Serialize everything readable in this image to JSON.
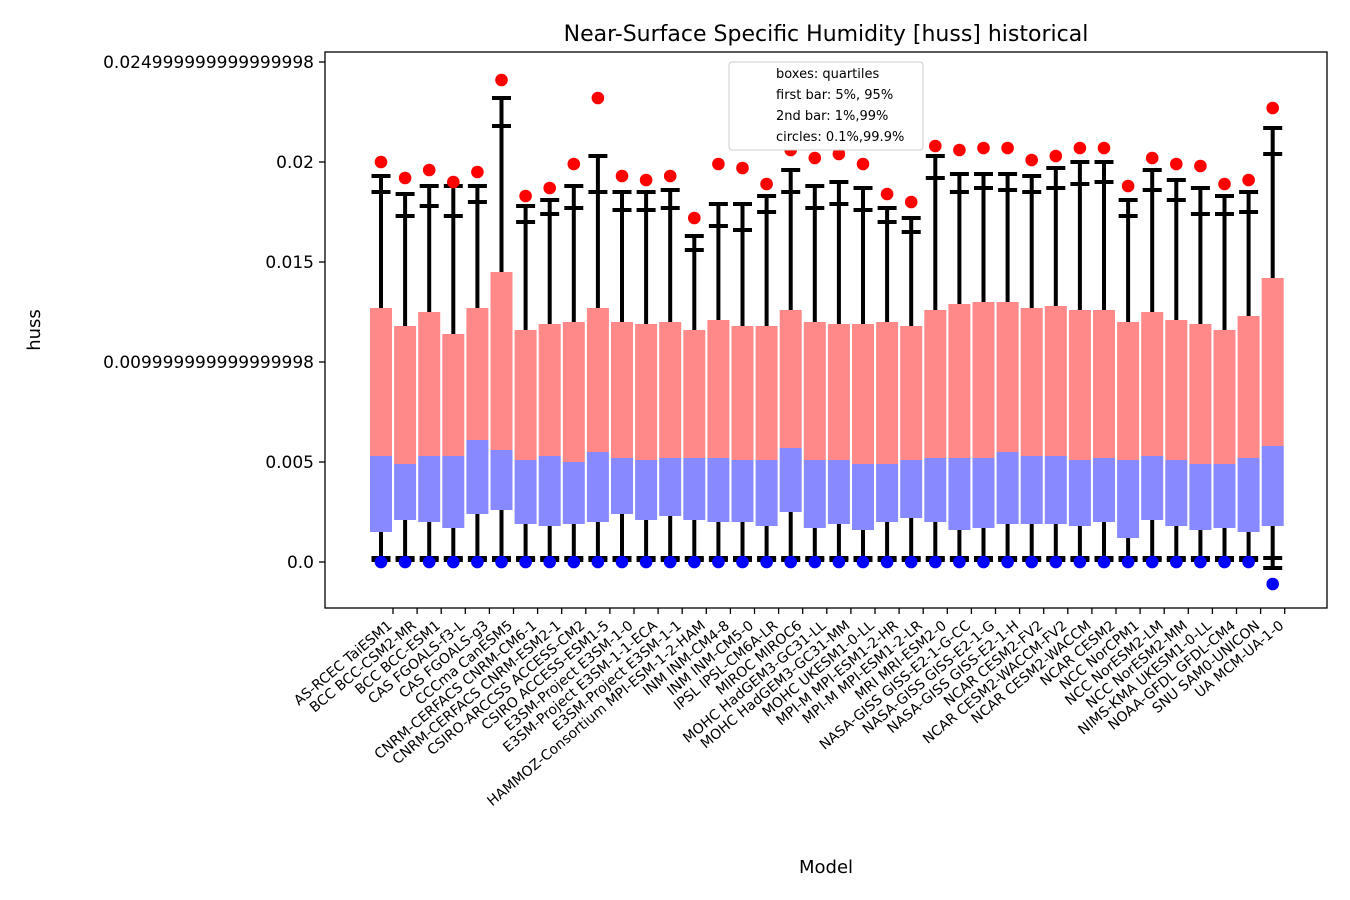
{
  "chart_data": {
    "type": "bar",
    "title": "Near-Surface Specific Humidity [huss] historical",
    "xlabel": "Model",
    "ylabel": "huss",
    "ylim": [
      -0.0023,
      0.0255
    ],
    "yticks": [
      {
        "value": 0.0,
        "label": "0.0"
      },
      {
        "value": 0.005,
        "label": "0.005"
      },
      {
        "value": 0.01,
        "label": "0.009999999999999998"
      },
      {
        "value": 0.015,
        "label": "0.015"
      },
      {
        "value": 0.02,
        "label": "0.02"
      },
      {
        "value": 0.025,
        "label": "0.024999999999999998"
      }
    ],
    "legend": {
      "placement": "top-center",
      "lines": [
        "boxes: quartiles",
        "first bar: 5%, 95%",
        "2nd bar: 1%,99%",
        "circles: 0.1%,99.9%"
      ]
    },
    "colors": {
      "upper_box": "#ff8888",
      "lower_box": "#8888ff",
      "whisker": "#000000",
      "high_circle": "#ff0000",
      "low_circle": "#0000ff"
    },
    "series_fields": [
      "q25",
      "q50",
      "q75",
      "p5",
      "p95",
      "p1",
      "p99",
      "p001",
      "p999"
    ],
    "categories": [
      "AS-RCEC TaiESM1",
      "BCC BCC-CSM2-MR",
      "BCC BCC-ESM1",
      "CAS FGOALS-f3-L",
      "CAS FGOALS-g3",
      "CCCma CanESM5",
      "CNRM-CERFACS CNRM-CM6-1",
      "CNRM-CERFACS CNRM-ESM2-1",
      "CSIRO-ARCCSS ACCESS-CM2",
      "CSIRO ACCESS-ESM1-5",
      "E3SM-Project E3SM-1-0",
      "E3SM-Project E3SM-1-1-ECA",
      "E3SM-Project E3SM-1-1",
      "HAMMOZ-Consortium MPI-ESM-1-2-HAM",
      "INM INM-CM4-8",
      "INM INM-CM5-0",
      "IPSL IPSL-CM6A-LR",
      "MIROC MIROC6",
      "MOHC HadGEM3-GC31-LL",
      "MOHC HadGEM3-GC31-MM",
      "MOHC UKESM1-0-LL",
      "MPI-M MPI-ESM1-2-HR",
      "MPI-M MPI-ESM1-2-LR",
      "MRI MRI-ESM2-0",
      "NASA-GISS GISS-E2-1-G-CC",
      "NASA-GISS GISS-E2-1-G",
      "NASA-GISS GISS-E2-1-H",
      "NCAR CESM2-FV2",
      "NCAR CESM2-WACCM-FV2",
      "NCAR CESM2-WACCM",
      "NCAR CESM2",
      "NCC NorCPM1",
      "NCC NorESM2-LM",
      "NCC NorESM2-MM",
      "NIMS-KMA UKESM1-0-LL",
      "NOAA-GFDL GFDL-CM4",
      "SNU SAM0-UNICON",
      "UA MCM-UA-1-0"
    ],
    "series": [
      [
        0.0015,
        0.0053,
        0.0127,
        0.0002,
        0.0185,
        0.0001,
        0.0193,
        0.0,
        0.02
      ],
      [
        0.0021,
        0.0049,
        0.0118,
        0.0002,
        0.0173,
        0.0001,
        0.0184,
        0.0,
        0.0192
      ],
      [
        0.002,
        0.0053,
        0.0125,
        0.0002,
        0.0178,
        0.0001,
        0.0188,
        0.0,
        0.0196
      ],
      [
        0.0017,
        0.0053,
        0.0114,
        0.0002,
        0.0173,
        0.0001,
        0.0188,
        0.0,
        0.019
      ],
      [
        0.0024,
        0.0061,
        0.0127,
        0.0002,
        0.018,
        0.0001,
        0.0188,
        0.0,
        0.0195
      ],
      [
        0.0026,
        0.0056,
        0.0145,
        0.0002,
        0.0218,
        0.0001,
        0.0232,
        0.0,
        0.0241
      ],
      [
        0.0019,
        0.0051,
        0.0116,
        0.0002,
        0.017,
        0.0001,
        0.0178,
        0.0,
        0.0183
      ],
      [
        0.0018,
        0.0053,
        0.0119,
        0.0002,
        0.0174,
        0.0001,
        0.0181,
        0.0,
        0.0187
      ],
      [
        0.0019,
        0.005,
        0.012,
        0.0002,
        0.0177,
        0.0001,
        0.0188,
        0.0,
        0.0199
      ],
      [
        0.002,
        0.0055,
        0.0127,
        0.0002,
        0.0185,
        0.0001,
        0.0203,
        0.0,
        0.0232
      ],
      [
        0.0024,
        0.0052,
        0.012,
        0.0002,
        0.0176,
        0.0001,
        0.0185,
        0.0,
        0.0193
      ],
      [
        0.0021,
        0.0051,
        0.0119,
        0.0002,
        0.0176,
        0.0001,
        0.0185,
        0.0,
        0.0191
      ],
      [
        0.0023,
        0.0052,
        0.012,
        0.0002,
        0.0177,
        0.0001,
        0.0186,
        0.0,
        0.0193
      ],
      [
        0.0021,
        0.0052,
        0.0116,
        0.0002,
        0.0156,
        0.0001,
        0.0163,
        0.0,
        0.0172
      ],
      [
        0.002,
        0.0052,
        0.0121,
        0.0002,
        0.0168,
        0.0001,
        0.0179,
        0.0,
        0.0199
      ],
      [
        0.002,
        0.0051,
        0.0118,
        0.0002,
        0.0166,
        0.0001,
        0.0179,
        0.0,
        0.0197
      ],
      [
        0.0018,
        0.0051,
        0.0118,
        0.0002,
        0.0175,
        0.0001,
        0.0183,
        0.0,
        0.0189
      ],
      [
        0.0025,
        0.0057,
        0.0126,
        0.0002,
        0.0185,
        0.0001,
        0.0196,
        0.0,
        0.0206
      ],
      [
        0.0017,
        0.0051,
        0.012,
        0.0002,
        0.0177,
        0.0001,
        0.0188,
        0.0,
        0.0202
      ],
      [
        0.0019,
        0.0051,
        0.0119,
        0.0002,
        0.0179,
        0.0001,
        0.019,
        0.0,
        0.0204
      ],
      [
        0.0016,
        0.0049,
        0.0119,
        0.0002,
        0.0176,
        0.0001,
        0.0187,
        0.0,
        0.0199
      ],
      [
        0.002,
        0.0049,
        0.012,
        0.0002,
        0.017,
        0.0001,
        0.0177,
        0.0,
        0.0184
      ],
      [
        0.0022,
        0.0051,
        0.0118,
        0.0002,
        0.0165,
        0.0001,
        0.0172,
        0.0,
        0.018
      ],
      [
        0.002,
        0.0052,
        0.0126,
        0.0002,
        0.0192,
        0.0001,
        0.0203,
        0.0,
        0.0208
      ],
      [
        0.0016,
        0.0052,
        0.0129,
        0.0002,
        0.0185,
        0.0001,
        0.0194,
        0.0,
        0.0206
      ],
      [
        0.0017,
        0.0052,
        0.013,
        0.0002,
        0.0187,
        0.0001,
        0.0194,
        0.0,
        0.0207
      ],
      [
        0.0019,
        0.0055,
        0.013,
        0.0002,
        0.0186,
        0.0001,
        0.0194,
        0.0,
        0.0207
      ],
      [
        0.0019,
        0.0053,
        0.0127,
        0.0002,
        0.0185,
        0.0001,
        0.0193,
        0.0,
        0.0201
      ],
      [
        0.0019,
        0.0053,
        0.0128,
        0.0002,
        0.0187,
        0.0001,
        0.0197,
        0.0,
        0.0203
      ],
      [
        0.0018,
        0.0051,
        0.0126,
        0.0002,
        0.0189,
        0.0001,
        0.02,
        0.0,
        0.0207
      ],
      [
        0.002,
        0.0052,
        0.0126,
        0.0002,
        0.019,
        0.0001,
        0.02,
        0.0,
        0.0207
      ],
      [
        0.0012,
        0.0051,
        0.012,
        0.0002,
        0.0173,
        0.0001,
        0.0181,
        0.0,
        0.0188
      ],
      [
        0.0021,
        0.0053,
        0.0125,
        0.0002,
        0.0186,
        0.0001,
        0.0196,
        0.0,
        0.0202
      ],
      [
        0.0018,
        0.0051,
        0.0121,
        0.0002,
        0.0181,
        0.0001,
        0.0191,
        0.0,
        0.0199
      ],
      [
        0.0016,
        0.0049,
        0.0119,
        0.0002,
        0.0174,
        0.0001,
        0.0187,
        0.0,
        0.0198
      ],
      [
        0.0017,
        0.0049,
        0.0116,
        0.0002,
        0.0174,
        0.0001,
        0.0183,
        0.0,
        0.0189
      ],
      [
        0.0015,
        0.0052,
        0.0123,
        0.0002,
        0.0175,
        0.0001,
        0.0185,
        0.0,
        0.0191
      ],
      [
        0.0018,
        0.0058,
        0.0142,
        0.0002,
        0.0204,
        -0.0003,
        0.0217,
        -0.0011,
        0.0227
      ]
    ]
  }
}
